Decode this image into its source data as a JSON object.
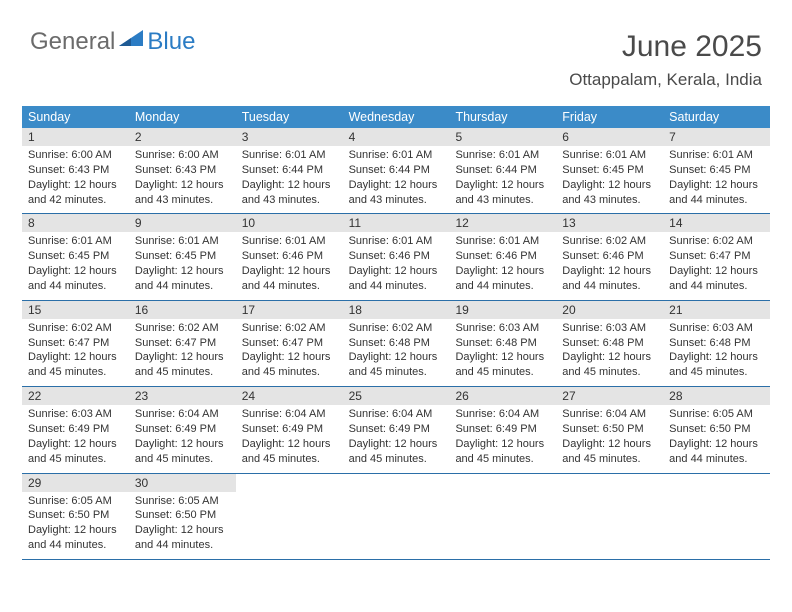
{
  "logo": {
    "text1": "General",
    "text2": "Blue"
  },
  "header": {
    "month": "June 2025",
    "location": "Ottappalam, Kerala, India"
  },
  "colors": {
    "header_bg": "#3b8bc8",
    "header_text": "#ffffff",
    "daynum_bg": "#e4e4e4",
    "row_border": "#2b6fa8",
    "body_text": "#333333",
    "logo_gray": "#6b6b6b",
    "logo_blue": "#2b7cc4"
  },
  "day_names": [
    "Sunday",
    "Monday",
    "Tuesday",
    "Wednesday",
    "Thursday",
    "Friday",
    "Saturday"
  ],
  "weeks": [
    [
      {
        "n": "1",
        "sr": "Sunrise: 6:00 AM",
        "ss": "Sunset: 6:43 PM",
        "dl": "Daylight: 12 hours and 42 minutes."
      },
      {
        "n": "2",
        "sr": "Sunrise: 6:00 AM",
        "ss": "Sunset: 6:43 PM",
        "dl": "Daylight: 12 hours and 43 minutes."
      },
      {
        "n": "3",
        "sr": "Sunrise: 6:01 AM",
        "ss": "Sunset: 6:44 PM",
        "dl": "Daylight: 12 hours and 43 minutes."
      },
      {
        "n": "4",
        "sr": "Sunrise: 6:01 AM",
        "ss": "Sunset: 6:44 PM",
        "dl": "Daylight: 12 hours and 43 minutes."
      },
      {
        "n": "5",
        "sr": "Sunrise: 6:01 AM",
        "ss": "Sunset: 6:44 PM",
        "dl": "Daylight: 12 hours and 43 minutes."
      },
      {
        "n": "6",
        "sr": "Sunrise: 6:01 AM",
        "ss": "Sunset: 6:45 PM",
        "dl": "Daylight: 12 hours and 43 minutes."
      },
      {
        "n": "7",
        "sr": "Sunrise: 6:01 AM",
        "ss": "Sunset: 6:45 PM",
        "dl": "Daylight: 12 hours and 44 minutes."
      }
    ],
    [
      {
        "n": "8",
        "sr": "Sunrise: 6:01 AM",
        "ss": "Sunset: 6:45 PM",
        "dl": "Daylight: 12 hours and 44 minutes."
      },
      {
        "n": "9",
        "sr": "Sunrise: 6:01 AM",
        "ss": "Sunset: 6:45 PM",
        "dl": "Daylight: 12 hours and 44 minutes."
      },
      {
        "n": "10",
        "sr": "Sunrise: 6:01 AM",
        "ss": "Sunset: 6:46 PM",
        "dl": "Daylight: 12 hours and 44 minutes."
      },
      {
        "n": "11",
        "sr": "Sunrise: 6:01 AM",
        "ss": "Sunset: 6:46 PM",
        "dl": "Daylight: 12 hours and 44 minutes."
      },
      {
        "n": "12",
        "sr": "Sunrise: 6:01 AM",
        "ss": "Sunset: 6:46 PM",
        "dl": "Daylight: 12 hours and 44 minutes."
      },
      {
        "n": "13",
        "sr": "Sunrise: 6:02 AM",
        "ss": "Sunset: 6:46 PM",
        "dl": "Daylight: 12 hours and 44 minutes."
      },
      {
        "n": "14",
        "sr": "Sunrise: 6:02 AM",
        "ss": "Sunset: 6:47 PM",
        "dl": "Daylight: 12 hours and 44 minutes."
      }
    ],
    [
      {
        "n": "15",
        "sr": "Sunrise: 6:02 AM",
        "ss": "Sunset: 6:47 PM",
        "dl": "Daylight: 12 hours and 45 minutes."
      },
      {
        "n": "16",
        "sr": "Sunrise: 6:02 AM",
        "ss": "Sunset: 6:47 PM",
        "dl": "Daylight: 12 hours and 45 minutes."
      },
      {
        "n": "17",
        "sr": "Sunrise: 6:02 AM",
        "ss": "Sunset: 6:47 PM",
        "dl": "Daylight: 12 hours and 45 minutes."
      },
      {
        "n": "18",
        "sr": "Sunrise: 6:02 AM",
        "ss": "Sunset: 6:48 PM",
        "dl": "Daylight: 12 hours and 45 minutes."
      },
      {
        "n": "19",
        "sr": "Sunrise: 6:03 AM",
        "ss": "Sunset: 6:48 PM",
        "dl": "Daylight: 12 hours and 45 minutes."
      },
      {
        "n": "20",
        "sr": "Sunrise: 6:03 AM",
        "ss": "Sunset: 6:48 PM",
        "dl": "Daylight: 12 hours and 45 minutes."
      },
      {
        "n": "21",
        "sr": "Sunrise: 6:03 AM",
        "ss": "Sunset: 6:48 PM",
        "dl": "Daylight: 12 hours and 45 minutes."
      }
    ],
    [
      {
        "n": "22",
        "sr": "Sunrise: 6:03 AM",
        "ss": "Sunset: 6:49 PM",
        "dl": "Daylight: 12 hours and 45 minutes."
      },
      {
        "n": "23",
        "sr": "Sunrise: 6:04 AM",
        "ss": "Sunset: 6:49 PM",
        "dl": "Daylight: 12 hours and 45 minutes."
      },
      {
        "n": "24",
        "sr": "Sunrise: 6:04 AM",
        "ss": "Sunset: 6:49 PM",
        "dl": "Daylight: 12 hours and 45 minutes."
      },
      {
        "n": "25",
        "sr": "Sunrise: 6:04 AM",
        "ss": "Sunset: 6:49 PM",
        "dl": "Daylight: 12 hours and 45 minutes."
      },
      {
        "n": "26",
        "sr": "Sunrise: 6:04 AM",
        "ss": "Sunset: 6:49 PM",
        "dl": "Daylight: 12 hours and 45 minutes."
      },
      {
        "n": "27",
        "sr": "Sunrise: 6:04 AM",
        "ss": "Sunset: 6:50 PM",
        "dl": "Daylight: 12 hours and 45 minutes."
      },
      {
        "n": "28",
        "sr": "Sunrise: 6:05 AM",
        "ss": "Sunset: 6:50 PM",
        "dl": "Daylight: 12 hours and 44 minutes."
      }
    ],
    [
      {
        "n": "29",
        "sr": "Sunrise: 6:05 AM",
        "ss": "Sunset: 6:50 PM",
        "dl": "Daylight: 12 hours and 44 minutes."
      },
      {
        "n": "30",
        "sr": "Sunrise: 6:05 AM",
        "ss": "Sunset: 6:50 PM",
        "dl": "Daylight: 12 hours and 44 minutes."
      },
      null,
      null,
      null,
      null,
      null
    ]
  ]
}
